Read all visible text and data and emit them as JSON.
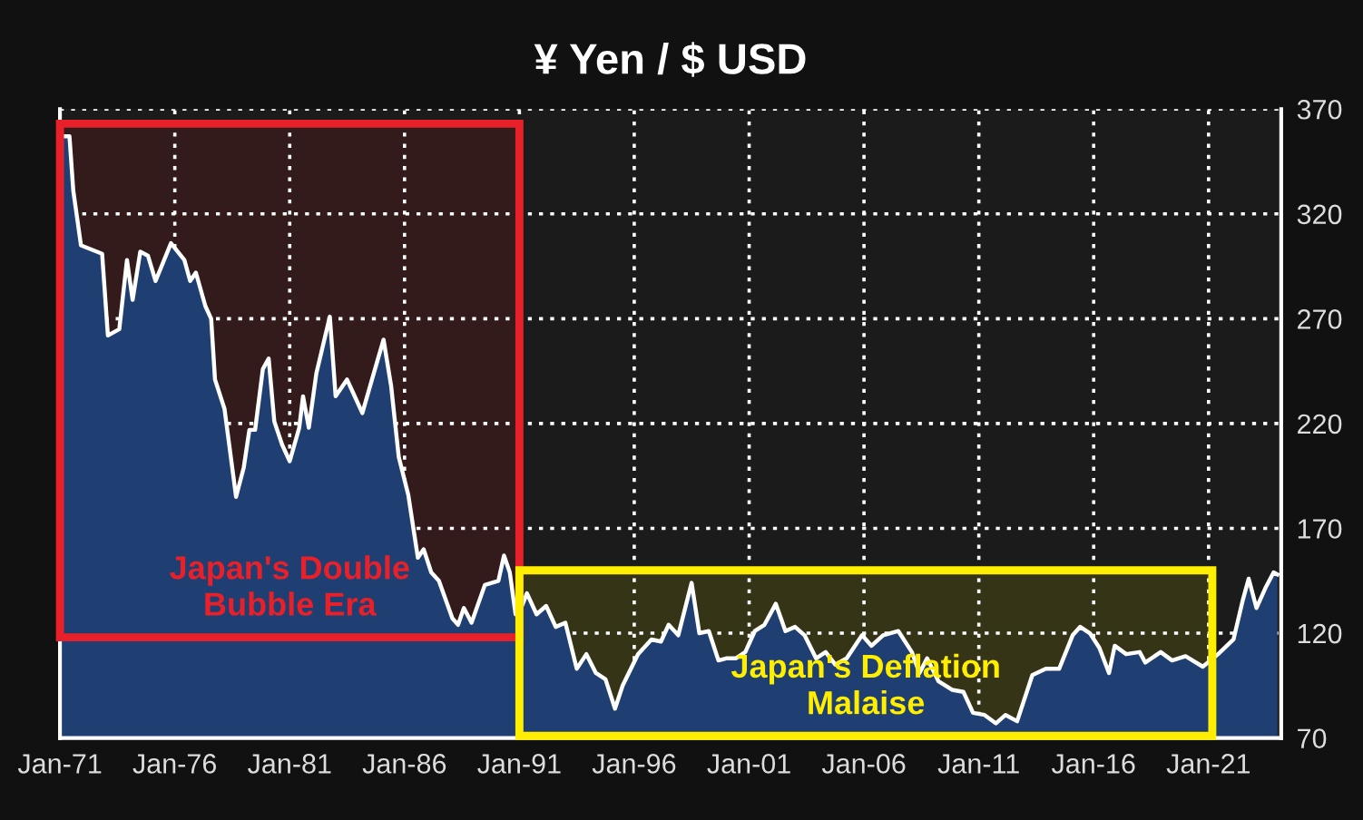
{
  "chart_data": {
    "type": "area",
    "title": "¥ Yen / $ USD",
    "x": [
      "1971-01",
      "1971-06",
      "1971-08",
      "1971-12",
      "1972-11",
      "1973-02",
      "1973-08",
      "1973-12",
      "1974-03",
      "1974-07",
      "1974-11",
      "1975-03",
      "1975-11",
      "1976-06",
      "1976-09",
      "1976-12",
      "1977-05",
      "1977-08",
      "1977-10",
      "1978-03",
      "1978-09",
      "1979-01",
      "1979-04",
      "1979-07",
      "1979-11",
      "1980-02",
      "1980-05",
      "1980-09",
      "1981-01",
      "1981-06",
      "1981-08",
      "1981-11",
      "1982-03",
      "1982-10",
      "1983-01",
      "1983-07",
      "1983-10",
      "1984-03",
      "1984-08",
      "1985-02",
      "1985-06",
      "1985-10",
      "1986-03",
      "1986-08",
      "1986-11",
      "1987-03",
      "1987-07",
      "1988-02",
      "1988-05",
      "1988-08",
      "1988-12",
      "1989-07",
      "1990-02",
      "1990-05",
      "1990-08",
      "1990-11",
      "1991-01",
      "1991-05",
      "1991-10",
      "1992-03",
      "1992-08",
      "1993-01",
      "1993-07",
      "1993-12",
      "1994-05",
      "1994-10",
      "1995-03",
      "1995-07",
      "1996-03",
      "1996-10",
      "1997-03",
      "1997-07",
      "1997-12",
      "1998-07",
      "1998-11",
      "1999-04",
      "1999-09",
      "2000-01",
      "2000-06",
      "2000-11",
      "2001-04",
      "2001-09",
      "2002-03",
      "2002-08",
      "2003-01",
      "2003-06",
      "2003-12",
      "2004-05",
      "2004-10",
      "2005-04",
      "2005-12",
      "2006-05",
      "2006-11",
      "2007-07",
      "2008-02",
      "2008-06",
      "2008-10",
      "2009-04",
      "2009-11",
      "2010-05",
      "2010-10",
      "2011-04",
      "2011-10",
      "2012-03",
      "2012-09",
      "2013-05",
      "2013-12",
      "2014-07",
      "2015-02",
      "2015-06",
      "2015-11",
      "2016-04",
      "2016-09",
      "2016-12",
      "2017-06",
      "2018-01",
      "2018-04",
      "2018-12",
      "2019-06",
      "2020-01",
      "2020-10",
      "2021-06",
      "2022-02",
      "2022-07",
      "2022-10",
      "2023-02",
      "2023-07",
      "2023-11",
      "2024-01"
    ],
    "series": [
      {
        "color": "#ffffff",
        "values": [
          357,
          357,
          331,
          305,
          301,
          262,
          265,
          298,
          279,
          302,
          300,
          288,
          306,
          298,
          288,
          292,
          276,
          270,
          241,
          227,
          185,
          199,
          217,
          217,
          246,
          251,
          221,
          210,
          202,
          218,
          233,
          218,
          244,
          271,
          233,
          241,
          235,
          225,
          241,
          260,
          238,
          204,
          186,
          156,
          160,
          149,
          145,
          127,
          124,
          132,
          125,
          143,
          145,
          157,
          149,
          129,
          130,
          139,
          129,
          133,
          123,
          125,
          103,
          110,
          101,
          98,
          84,
          95,
          110,
          117,
          116,
          124,
          119,
          144,
          120,
          121,
          107,
          108,
          108,
          111,
          121,
          124,
          134,
          121,
          123,
          119,
          108,
          111,
          105,
          108,
          119,
          114,
          119,
          121,
          111,
          101,
          108,
          97,
          93,
          92,
          82,
          81,
          77,
          81,
          78,
          100,
          103,
          103,
          119,
          123,
          120,
          113,
          101,
          114,
          110,
          111,
          106,
          111,
          107,
          109,
          104,
          110,
          117,
          136,
          146,
          132,
          142,
          149,
          148
        ]
      }
    ],
    "xlim": [
      "1971-01",
      "2024-03"
    ],
    "xticks": [
      {
        "value": "1971-01",
        "label": "Jan-71"
      },
      {
        "value": "1976-01",
        "label": "Jan-76"
      },
      {
        "value": "1981-01",
        "label": "Jan-81"
      },
      {
        "value": "1986-01",
        "label": "Jan-86"
      },
      {
        "value": "1991-01",
        "label": "Jan-91"
      },
      {
        "value": "1996-01",
        "label": "Jan-96"
      },
      {
        "value": "2001-01",
        "label": "Jan-01"
      },
      {
        "value": "2006-01",
        "label": "Jan-06"
      },
      {
        "value": "2011-01",
        "label": "Jan-11"
      },
      {
        "value": "2016-01",
        "label": "Jan-16"
      },
      {
        "value": "2021-01",
        "label": "Jan-21"
      }
    ],
    "ylim": [
      70,
      370
    ],
    "yticks": [
      70,
      120,
      170,
      220,
      270,
      320,
      370
    ],
    "grid": true,
    "bands": [
      {
        "axis": "x",
        "from": "1971-01",
        "to": "1991-01",
        "label": "Japan's Double\nBubble Era",
        "color": "#e8202a"
      },
      {
        "axis": "x",
        "from": "1991-01",
        "to": "2021-03",
        "label": "Japan's Deflation\nMalaise",
        "color": "#ffee00"
      }
    ]
  }
}
